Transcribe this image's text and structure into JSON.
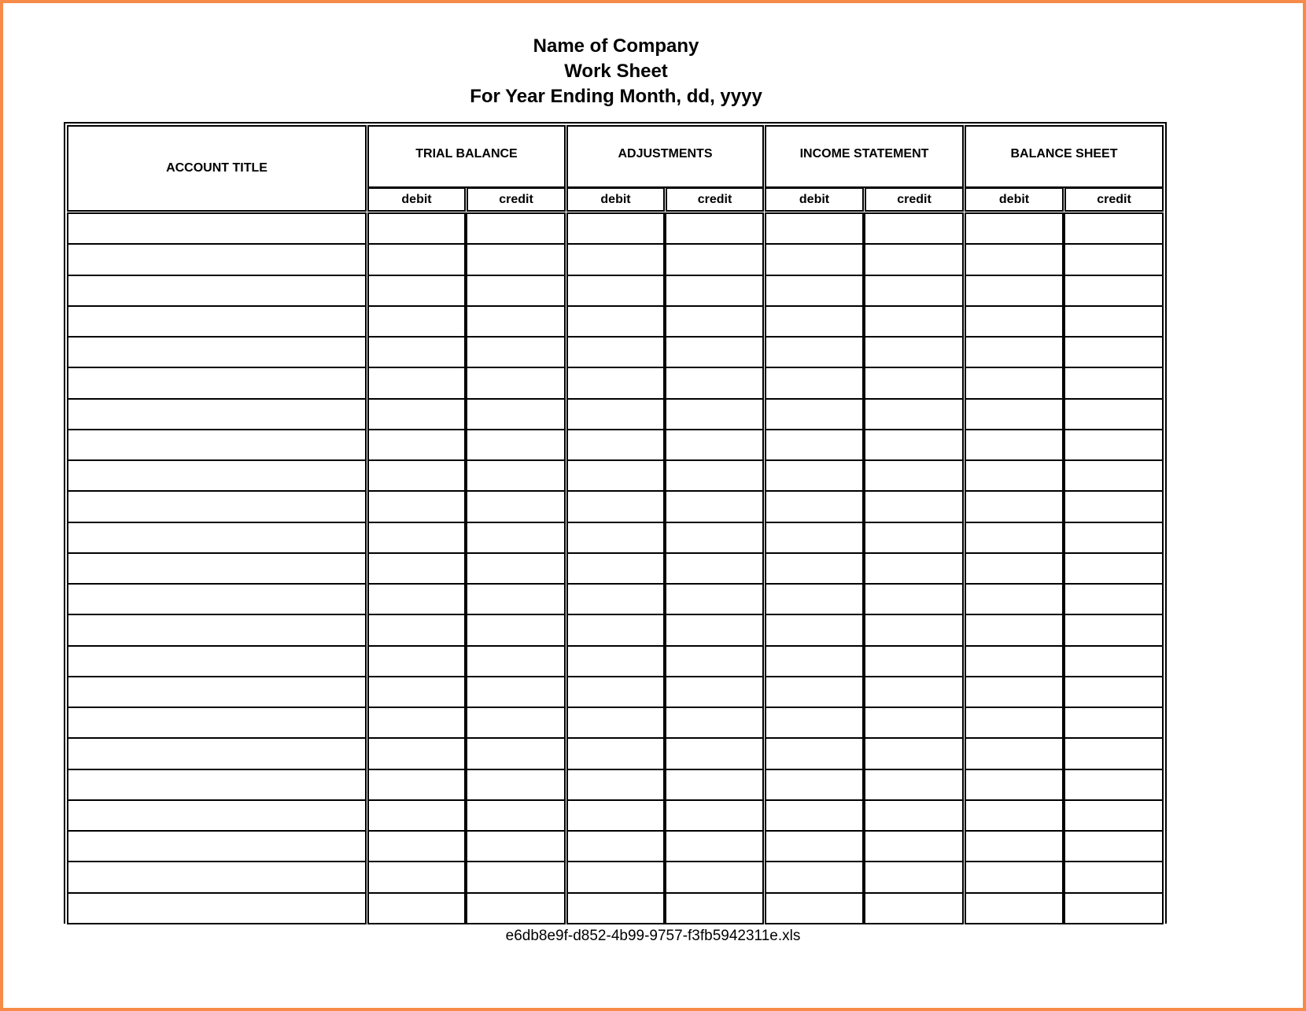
{
  "header": {
    "company": "Name of Company",
    "sheet": "Work Sheet",
    "period": "For Year Ending Month, dd, yyyy"
  },
  "table": {
    "account_title": "ACCOUNT TITLE",
    "groups": [
      {
        "label": "TRIAL BALANCE",
        "debit": "debit",
        "credit": "credit"
      },
      {
        "label": "ADJUSTMENTS",
        "debit": "debit",
        "credit": "credit"
      },
      {
        "label": "INCOME STATEMENT",
        "debit": "debit",
        "credit": "credit"
      },
      {
        "label": "BALANCE SHEET",
        "debit": "debit",
        "credit": "credit"
      }
    ],
    "row_count": 23
  },
  "footer": {
    "filename": "e6db8e9f-d852-4b99-9757-f3fb5942311e.xls"
  },
  "colors": {
    "frame": "#f68b4a",
    "lines": "#000000"
  }
}
